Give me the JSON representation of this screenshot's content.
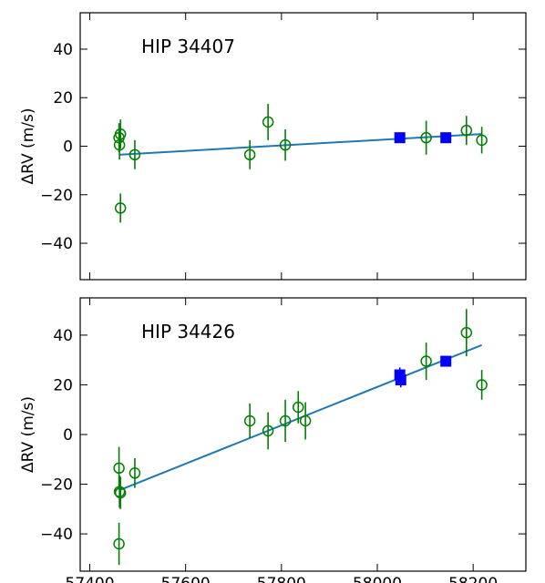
{
  "chart_data": [
    {
      "type": "scatter",
      "title": "HIP 34407",
      "ylabel": "ΔRV (m/s)",
      "xlim": [
        57380,
        58310
      ],
      "ylim": [
        -55,
        55
      ],
      "xticks": [
        57400,
        57600,
        57800,
        58000,
        58200
      ],
      "yticks": [
        -40,
        -20,
        0,
        20,
        40
      ],
      "grid": false,
      "series": [
        {
          "marker": "open-circle",
          "color": "#008000",
          "points": [
            {
              "x": 57461,
              "y": 3.5,
              "err": 6
            },
            {
              "x": 57462,
              "y": 0.5,
              "err": 6
            },
            {
              "x": 57464,
              "y": 5.0,
              "err": 6
            },
            {
              "x": 57464,
              "y": -25.5,
              "err": 6
            },
            {
              "x": 57494,
              "y": -3.5,
              "err": 6
            },
            {
              "x": 57734,
              "y": -3.5,
              "err": 6
            },
            {
              "x": 57772,
              "y": 10.0,
              "err": 7.5
            },
            {
              "x": 57808,
              "y": 0.5,
              "err": 6.5
            },
            {
              "x": 58102,
              "y": 3.5,
              "err": 7
            },
            {
              "x": 58186,
              "y": 6.5,
              "err": 6
            },
            {
              "x": 58218,
              "y": 2.5,
              "err": 5.5
            }
          ]
        },
        {
          "marker": "filled-square",
          "color": "#0000ff",
          "points": [
            {
              "x": 58047,
              "y": 3.5,
              "err": 0
            },
            {
              "x": 58143,
              "y": 3.5,
              "err": 0
            }
          ]
        }
      ],
      "fit_line": {
        "color": "#1f77b4",
        "x": [
          57461,
          58218
        ],
        "y": [
          -3.5,
          5.0
        ]
      }
    },
    {
      "type": "scatter",
      "title": "HIP 34426",
      "ylabel": "ΔRV (m/s)",
      "xlim": [
        57380,
        58310
      ],
      "ylim": [
        -55,
        55
      ],
      "xticks": [
        57400,
        57600,
        57800,
        58000,
        58200
      ],
      "xticklabels": [
        "57400",
        "57600",
        "57800",
        "58000",
        "58200"
      ],
      "yticks": [
        -40,
        -20,
        0,
        20,
        40
      ],
      "grid": false,
      "series": [
        {
          "marker": "open-circle",
          "color": "#008000",
          "points": [
            {
              "x": 57461,
              "y": -13.5,
              "err": 8.5
            },
            {
              "x": 57462,
              "y": -23.0,
              "err": 6.5
            },
            {
              "x": 57464,
              "y": -23.5,
              "err": 6.5
            },
            {
              "x": 57461,
              "y": -44.0,
              "err": 8.5
            },
            {
              "x": 57494,
              "y": -15.5,
              "err": 6
            },
            {
              "x": 57734,
              "y": 5.5,
              "err": 7
            },
            {
              "x": 57772,
              "y": 1.5,
              "err": 7.5
            },
            {
              "x": 57808,
              "y": 5.5,
              "err": 8.5
            },
            {
              "x": 57835,
              "y": 11.0,
              "err": 6.5
            },
            {
              "x": 57850,
              "y": 5.5,
              "err": 7.5
            },
            {
              "x": 58102,
              "y": 29.5,
              "err": 7.5
            },
            {
              "x": 58186,
              "y": 41.0,
              "err": 9.5
            },
            {
              "x": 58218,
              "y": 20.0,
              "err": 6
            }
          ]
        },
        {
          "marker": "filled-square",
          "color": "#0000ff",
          "points": [
            {
              "x": 58047,
              "y": 24.0,
              "err": 3
            },
            {
              "x": 58049,
              "y": 22.0,
              "err": 3
            },
            {
              "x": 58143,
              "y": 29.5,
              "err": 0
            }
          ]
        }
      ],
      "fit_line": {
        "color": "#1f77b4",
        "x": [
          57461,
          58218
        ],
        "y": [
          -22.5,
          36.0
        ]
      }
    }
  ]
}
